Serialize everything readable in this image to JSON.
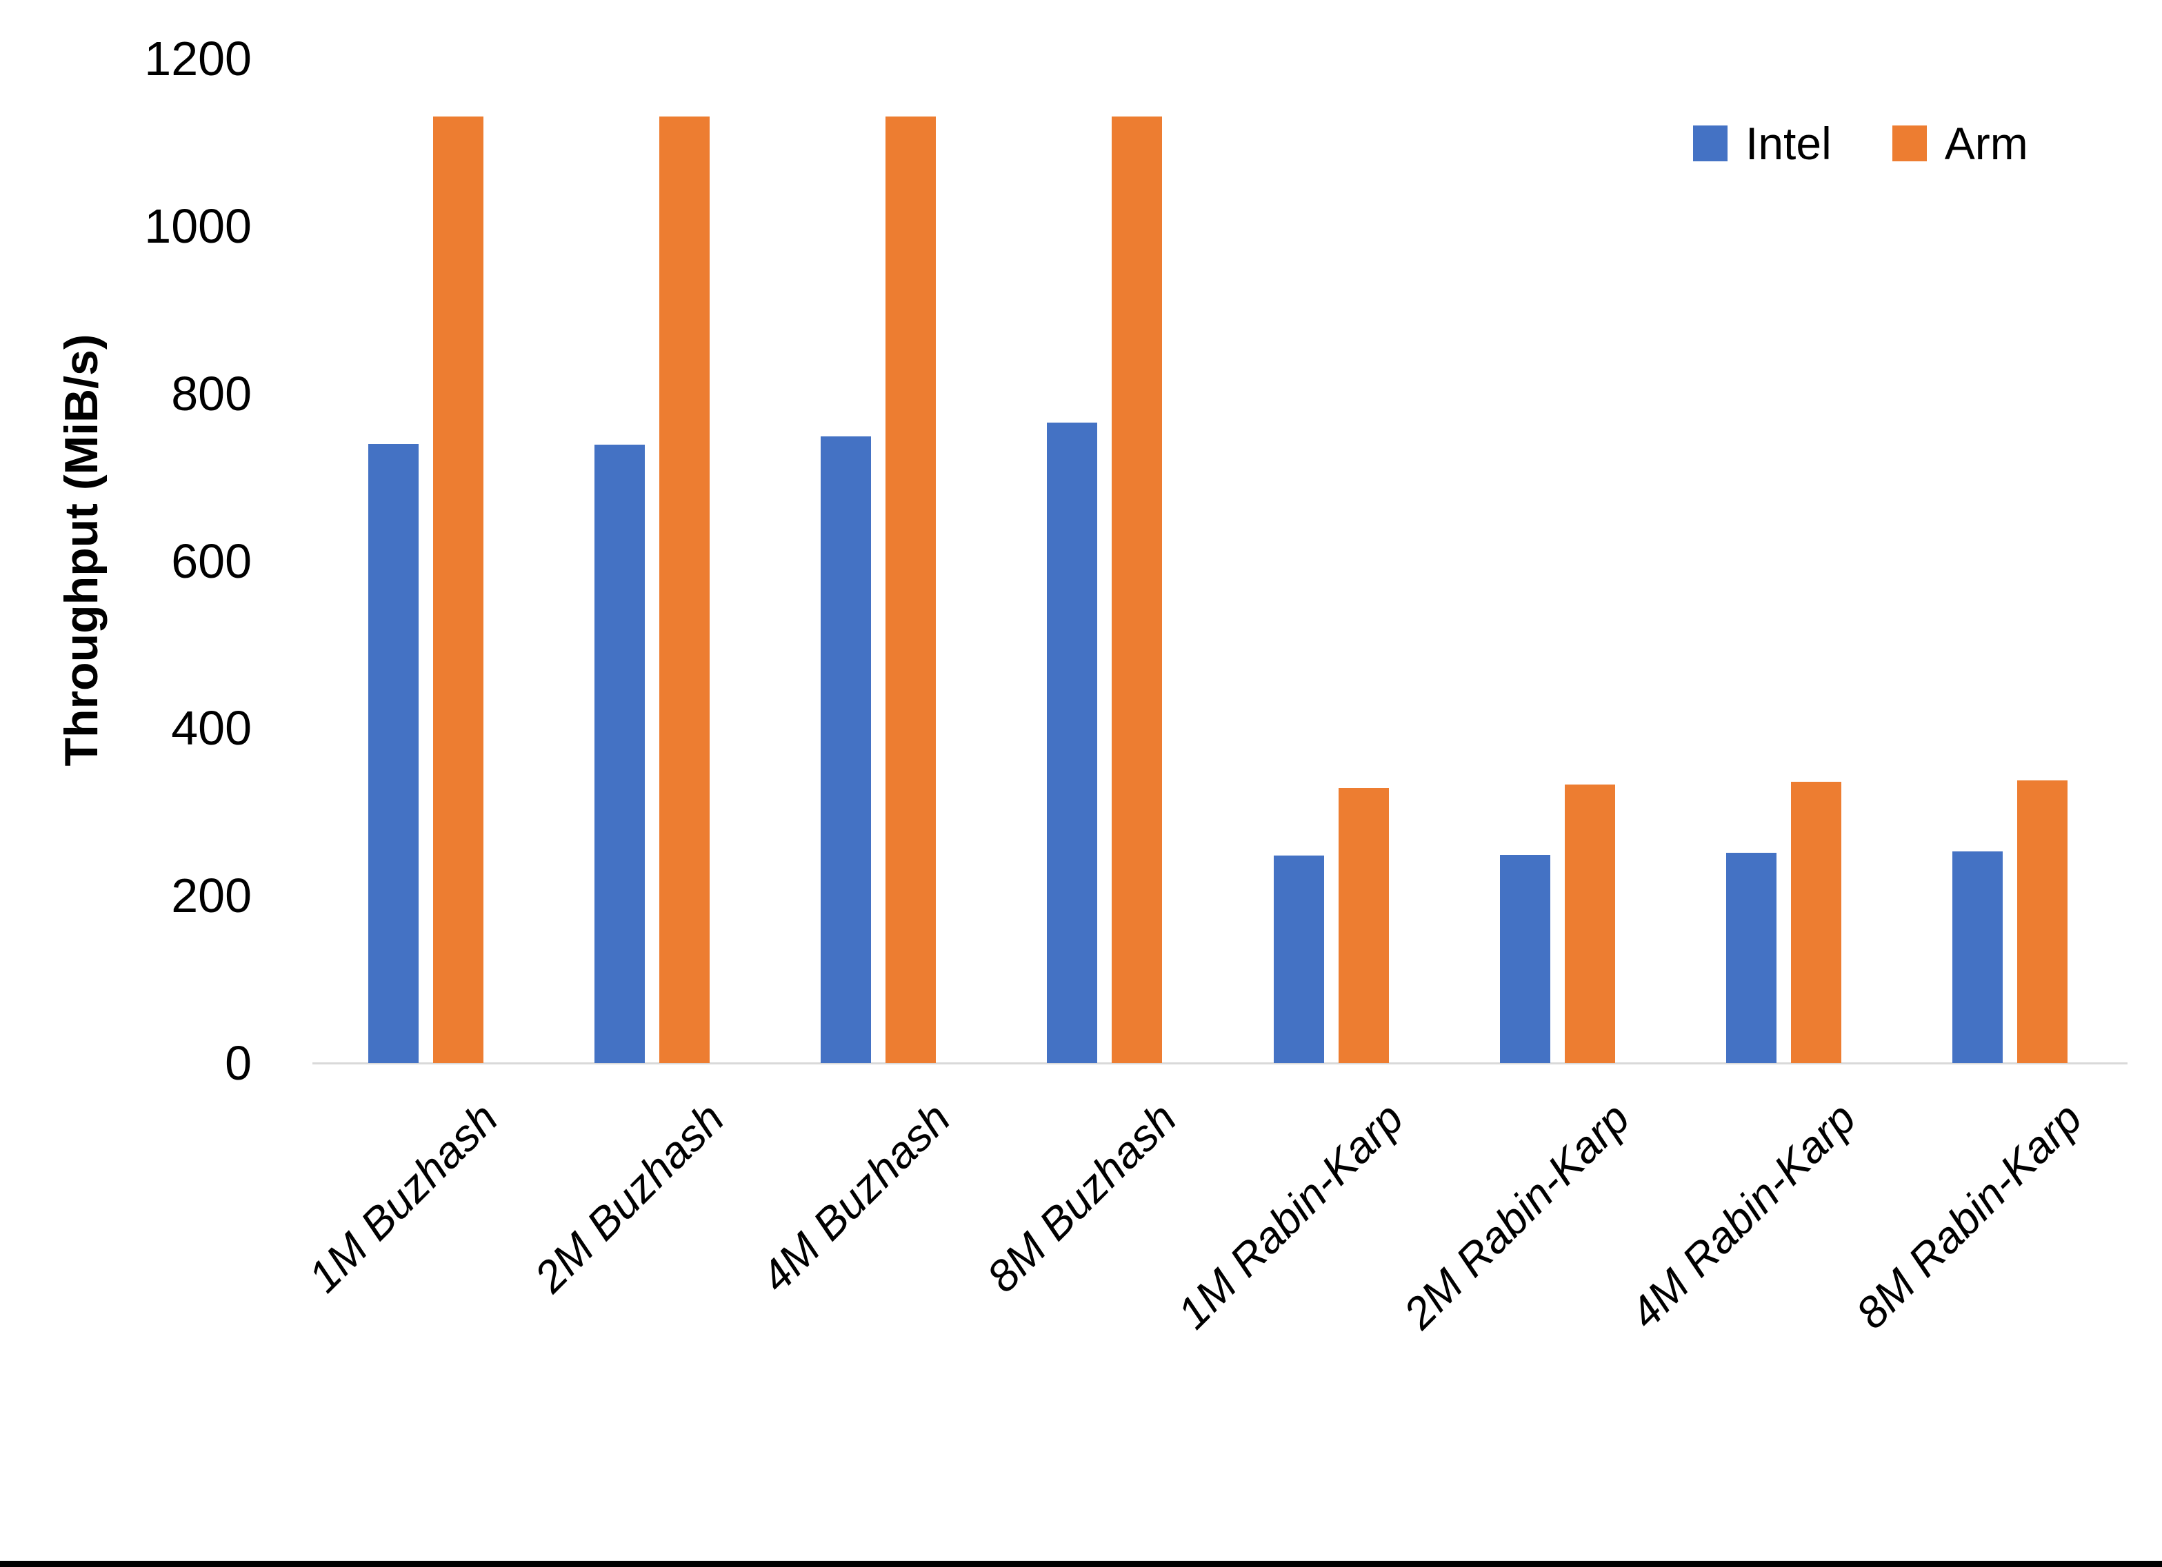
{
  "chart_data": {
    "type": "bar",
    "title": "",
    "categories": [
      "1M Buzhash",
      "2M Buzhash",
      "4M Buzhash",
      "8M Buzhash",
      "1M Rabin-Karp",
      "2M Rabin-Karp",
      "4M Rabin-Karp",
      "8M Rabin-Karp"
    ],
    "series": [
      {
        "name": "Intel",
        "color": "#4472C4",
        "values": [
          740,
          739,
          749,
          765,
          248,
          249,
          251,
          253
        ]
      },
      {
        "name": "Arm",
        "color": "#ED7D31",
        "values": [
          1131,
          1131,
          1131,
          1131,
          329,
          333,
          336,
          338
        ]
      }
    ],
    "xlabel": "",
    "ylabel": "Throughput (MiB/s)",
    "ylim": [
      0,
      1200
    ],
    "yticks": [
      0,
      200,
      400,
      600,
      800,
      1000,
      1200
    ],
    "legend_position": "top-right",
    "grid": false,
    "axis_line_color": "#d9d9d9",
    "text_color": "#000000"
  }
}
